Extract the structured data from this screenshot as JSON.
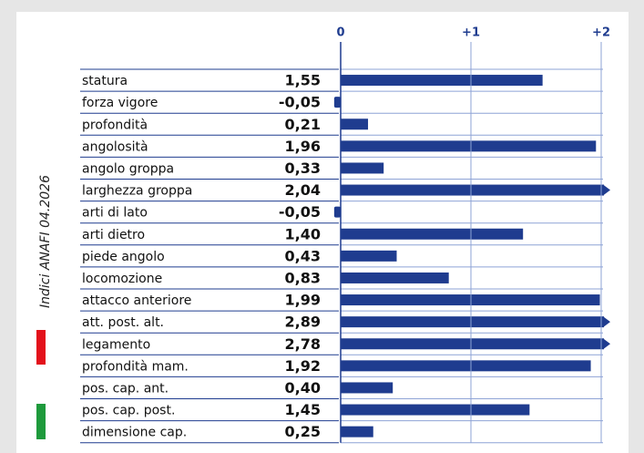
{
  "chart_data": {
    "type": "bar",
    "orientation": "horizontal",
    "side_label": "Indici ANAFI 04.2026",
    "categories": [
      "statura",
      "forza vigore",
      "profondità",
      "angolosità",
      "angolo groppa",
      "larghezza groppa",
      "arti di lato",
      "arti dietro",
      "piede angolo",
      "locomozione",
      "attacco anteriore",
      "att. post. alt.",
      "legamento",
      "profondità mam.",
      "pos. cap. ant.",
      "pos. cap. post.",
      "dimensione cap."
    ],
    "values": [
      1.55,
      -0.05,
      0.21,
      1.96,
      0.33,
      2.04,
      -0.05,
      1.4,
      0.43,
      0.83,
      1.99,
      2.89,
      2.78,
      1.92,
      0.4,
      1.45,
      0.25
    ],
    "value_labels": [
      "1,55",
      "-0,05",
      "0,21",
      "1,96",
      "0,33",
      "2,04",
      "-0,05",
      "1,40",
      "0,43",
      "0,83",
      "1,99",
      "2,89",
      "2,78",
      "1,92",
      "0,40",
      "1,45",
      "0,25"
    ],
    "color": "#1f3c8f",
    "xlim": [
      0,
      2
    ],
    "xticks": [
      0,
      {
        "value": 1,
        "label": "+1"
      },
      {
        "value": 2,
        "label": "+2"
      }
    ],
    "grid": true
  }
}
